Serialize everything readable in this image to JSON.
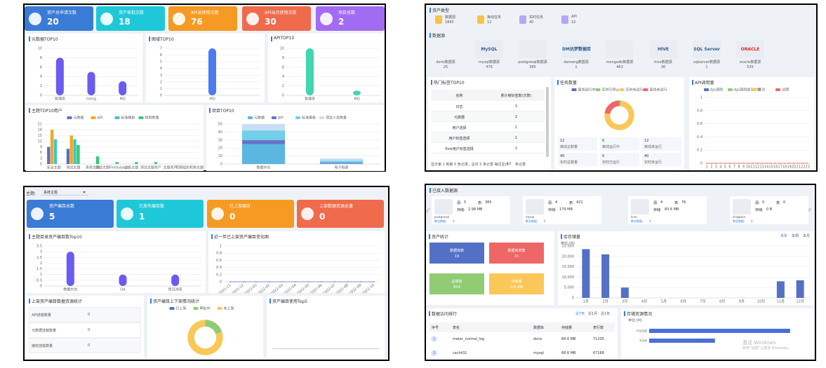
{
  "tl": {
    "cards": [
      {
        "label": "资产总申请次数",
        "value": 20
      },
      {
        "label": "资产审批次数",
        "value": 18
      },
      {
        "label": "API总使用次数",
        "value": 76
      },
      {
        "label": "API当月使用次数",
        "value": 30
      },
      {
        "label": "项目总数",
        "value": 2
      }
    ]
  },
  "tr": {
    "asset_title": "资产类型",
    "asset_types": [
      {
        "label": "数据源",
        "value": 1865
      },
      {
        "label": "离线任务",
        "value": 12
      },
      {
        "label": "实时任务",
        "value": 40
      },
      {
        "label": "API",
        "value": 22
      }
    ],
    "source_title": "数据源",
    "sources": [
      {
        "label": "doris数据源",
        "value": 25
      },
      {
        "logo": "MySQL",
        "label": "mysql数据源",
        "value": 476
      },
      {
        "label": "postgresql数据源",
        "value": 385
      },
      {
        "logo": "DM达梦数据库",
        "label": "dameng数据源",
        "value": 1
      },
      {
        "label": "mongodb数据源",
        "value": 463
      },
      {
        "logo": "HIVE",
        "label": "hive数据源",
        "value": 36
      },
      {
        "logo": "SQL Server",
        "label": "sqlserver数据源",
        "value": 1
      },
      {
        "logo": "ORACLE",
        "label": "oracle数据源",
        "value": 535
      }
    ],
    "tag_table": {
      "title": "热门标签TOP10",
      "headers": [
        "名称",
        "累计被标签数(次数)"
      ],
      "rows": [
        [
          "日志",
          3
        ],
        [
          "元数据",
          2
        ],
        [
          "用户选择",
          1
        ],
        [
          "用户标签选择",
          1
        ],
        [
          "flink用户标签选择",
          1
        ]
      ],
      "footer": "显示第 1 到第 5 条记录，总共 5 条记录 每页显示",
      "page_size": 10,
      "footer_end": "条记录"
    },
    "task_stats": [
      {
        "value": 12,
        "label": "离线总数量"
      },
      {
        "value": 0,
        "label": "离线运行中"
      },
      {
        "value": 12,
        "label": "离线未运行"
      },
      {
        "value": 40,
        "label": "实时总数量"
      },
      {
        "value": 0,
        "label": "实时已运行"
      },
      {
        "value": 40,
        "label": "实时未运行"
      }
    ]
  },
  "bl": {
    "topic_label": "主题:",
    "topic": "系统主题",
    "cards": [
      {
        "label": "资产编目总数",
        "value": 5
      },
      {
        "label": "已发布编目数",
        "value": 1
      },
      {
        "label": "已上架编目",
        "value": 0
      },
      {
        "label": "上架数据资源总量",
        "value": 0
      }
    ],
    "mount_table": {
      "title": "上架资产编目数据资源统计",
      "rows": [
        [
          "API挂载数量",
          0
        ],
        [
          "元数据挂载数量",
          0
        ],
        [
          "接收挂载数量",
          0
        ]
      ]
    },
    "top5_title": "资产编目使用Top5"
  },
  "br": {
    "title": "已接入数据源",
    "source_label": "源:",
    "table_label": "表:",
    "storage_label": "存储:",
    "dw_label": "数仓数据:",
    "sources": [
      {
        "name": "postgresql",
        "source": 5,
        "tables": 385,
        "storage": "2.98 MB",
        "dw": 0
      },
      {
        "name": "mysql",
        "source": 4,
        "tables": 421,
        "storage": "179 MB",
        "dw": 0
      },
      {
        "name": "hive",
        "source": 4,
        "tables": 76,
        "storage": "83.6 MB",
        "dw": 0
      },
      {
        "name": "kingbase",
        "source": 0,
        "tables": 0,
        "storage": "0 B",
        "dw": 0
      }
    ],
    "stats_title": "资产统计",
    "stats": [
      {
        "label": "数据库数",
        "value": 19
      },
      {
        "label": "数据库表数",
        "value": 15
      },
      {
        "label": "总表数",
        "value": 814
      },
      {
        "label": "存储量",
        "value": "335 MB"
      }
    ],
    "storage_tabs": [
      "本年",
      "本周",
      "本月"
    ],
    "rank": {
      "title": "数据访问排行",
      "tabs": [
        "近7天",
        "近1月",
        "近1年"
      ],
      "headers": [
        "序号",
        "表名",
        "数据库",
        "存储量",
        "表行数"
      ],
      "rows": [
        [
          1,
          "meter_normal_log",
          "doris",
          "68.6 MB",
          71205
        ],
        [
          2,
          "cecht02",
          "mysql",
          "68.6 MB",
          67168
        ]
      ]
    },
    "watermark": [
      "激活 Windows",
      "转到“设置”以激活 Windows。"
    ]
  },
  "chart_data": [
    {
      "type": "bar",
      "title": "元数据TOP10",
      "categories": [
        "管理员",
        "meng",
        "MQ"
      ],
      "values": [
        8,
        5,
        3
      ],
      "color": "#6a5cf0",
      "ylim": [
        0,
        10
      ],
      "yticks": [
        0,
        2,
        4,
        6,
        8,
        10
      ]
    },
    {
      "type": "bar",
      "title": "图域TOP10",
      "categories": [
        "MQ"
      ],
      "values": [
        7
      ],
      "color": "#4b7bf0",
      "ylim": [
        0,
        7
      ],
      "yticks": [
        0,
        1,
        2,
        3,
        4,
        5,
        6,
        7
      ]
    },
    {
      "type": "bar",
      "title": "APITOP10",
      "categories": [
        "管理员",
        "MQ"
      ],
      "values": [
        10,
        1
      ],
      "color": "#3fd6b0",
      "ylim": [
        0,
        10
      ],
      "yticks": [
        0,
        2,
        4,
        6,
        8,
        10
      ]
    },
    {
      "type": "bar",
      "title": "主题TOP10用户",
      "categories": [
        "安全主题",
        "测试主题",
        "系统主题",
        "测试主题FireSubject",
        "业务主题",
        "测试主题资产",
        "主题资产",
        "权限组织机构主题"
      ],
      "ylim": [
        0,
        21
      ],
      "yticks": [
        0,
        3,
        6,
        9,
        12,
        15,
        18,
        21
      ],
      "series": [
        {
          "name": "元数据",
          "color": "#5470c6",
          "values": [
            9,
            8,
            0,
            0,
            0,
            0,
            0,
            0
          ]
        },
        {
          "name": "API",
          "color": "#f5a623",
          "values": [
            18,
            15,
            0,
            0,
            0,
            0,
            0,
            0
          ]
        },
        {
          "name": "标准模板",
          "color": "#3ec6c8",
          "values": [
            13,
            13,
            0,
            0,
            0,
            0,
            0,
            0
          ]
        },
        {
          "name": "规则数量",
          "color": "#2ecc71",
          "values": [
            0,
            10,
            4,
            1,
            1,
            1,
            0,
            0
          ]
        }
      ]
    },
    {
      "type": "bar",
      "stacked": true,
      "title": "项目TOP10",
      "categories": [
        "数据中台",
        "电子档案"
      ],
      "ylim": [
        0,
        50
      ],
      "yticks": [
        0,
        10,
        20,
        30,
        40,
        50
      ],
      "series": [
        {
          "name": "元数据",
          "color": "#5bb6e0",
          "values": [
            25,
            1
          ]
        },
        {
          "name": "API",
          "color": "#6a72c8",
          "values": [
            5,
            1
          ]
        },
        {
          "name": "标准模板",
          "color": "#6fd0e8",
          "values": [
            12,
            2
          ]
        },
        {
          "name": "项目人员数量",
          "color": "#c8def2",
          "values": [
            8,
            3
          ]
        }
      ]
    },
    {
      "type": "pie",
      "title": "任务数量",
      "categories": [
        "离线运行中",
        "实时已停止",
        "实时未运行",
        "离线未运行"
      ],
      "values": [
        0,
        1,
        40,
        12
      ],
      "colors": [
        "#5470c6",
        "#91cc75",
        "#fac858",
        "#ee6666"
      ]
    },
    {
      "type": "line",
      "title": "API调用量",
      "categories": [
        1,
        2,
        3,
        4,
        5,
        6,
        7,
        8,
        9,
        10,
        11,
        12,
        13,
        14,
        15,
        16,
        17,
        18,
        19,
        20,
        21,
        22,
        23
      ],
      "ylim": [
        0,
        1
      ],
      "yticks": [
        0,
        0.2,
        0.4,
        0.6,
        0.8,
        1
      ],
      "series": [
        {
          "name": "Api调用",
          "color": "#5470c6",
          "values": [
            0,
            0,
            0,
            0,
            0,
            0,
            0,
            0,
            0,
            0,
            0,
            0,
            0,
            0,
            0,
            0,
            0,
            0,
            0,
            0,
            0,
            0,
            0
          ]
        },
        {
          "name": "Api调用成功次数",
          "color": "#91cc75",
          "values": [
            0,
            0,
            0,
            0,
            0,
            0,
            0,
            0,
            0,
            0,
            0,
            0,
            0,
            0,
            0,
            0,
            0,
            0,
            0,
            0,
            0,
            0,
            0
          ]
        },
        {
          "name": "成功",
          "color": "#fac858",
          "values": [
            0,
            0,
            0,
            0,
            0,
            0,
            0,
            0,
            0,
            0,
            0,
            0,
            0,
            0,
            0,
            0,
            0,
            0,
            0,
            0,
            0,
            0,
            0
          ]
        },
        {
          "name": "过期",
          "color": "#ee6666",
          "values": [
            0,
            0,
            0,
            0,
            0,
            0,
            0,
            0,
            0,
            0,
            0,
            0,
            0,
            0,
            0,
            0,
            0,
            0,
            0,
            0,
            0,
            0,
            0
          ]
        }
      ]
    },
    {
      "type": "bar",
      "title": "主题目录资产编目数Top10",
      "categories": [
        "数据中台",
        "OA",
        "情况浏览"
      ],
      "values": [
        3,
        1,
        1
      ],
      "color": "#6a5cf0",
      "ylim": [
        0,
        3.5
      ],
      "yticks": [
        0,
        0.5,
        1,
        1.5,
        2,
        2.5,
        3,
        3.5
      ]
    },
    {
      "type": "line",
      "title": "近一年已上架资产编目变化图",
      "categories": [
        "2021-11",
        "2021-12",
        "2022-01",
        "2022-02",
        "2022-03",
        "2022-04",
        "2022-05",
        "2022-06",
        "2022-07",
        "2022-08",
        "2022-09",
        "2022-10"
      ],
      "ylim": [
        0,
        1
      ],
      "yticks": [
        0,
        0.2,
        0.4,
        0.6,
        0.8,
        1
      ],
      "series": [
        {
          "color": "#5470c6",
          "values": [
            0,
            0,
            0,
            0,
            0,
            0,
            0,
            0,
            0,
            0,
            0,
            0
          ]
        }
      ]
    },
    {
      "type": "pie",
      "title": "资产编目上下架情况统计",
      "categories": [
        "已上架",
        "审批中",
        "未上架"
      ],
      "values": [
        0,
        1,
        4
      ],
      "colors": [
        "#5470c6",
        "#91cc75",
        "#fac858"
      ]
    },
    {
      "type": "bar",
      "title": "库存储量",
      "unit": "单位:(M)",
      "categories": [
        "1月",
        "2月",
        "3月",
        "4月",
        "5月",
        "6月",
        "7月",
        "8月",
        "9月",
        "10月",
        "11月",
        "12月"
      ],
      "values": [
        23500,
        21000,
        5000,
        0,
        0,
        0,
        0,
        0,
        0,
        0,
        8000,
        8500
      ],
      "color": "#5470c6",
      "ylim": [
        0,
        25000
      ],
      "yticks": [
        0,
        {
          "value": 5000,
          "label": "5,000"
        },
        {
          "value": 10000,
          "label": "10,000"
        },
        {
          "value": 15000,
          "label": "15,000"
        },
        {
          "value": 20000,
          "label": "20,000"
        },
        {
          "value": 25000,
          "label": "25,000"
        }
      ]
    },
    {
      "type": "hbar",
      "title": "存储资源情况",
      "unit": "单位:(M)",
      "categories": [
        "mysql",
        "hive"
      ],
      "values": [
        179,
        83.6
      ],
      "color": "#4b6fd6"
    }
  ]
}
